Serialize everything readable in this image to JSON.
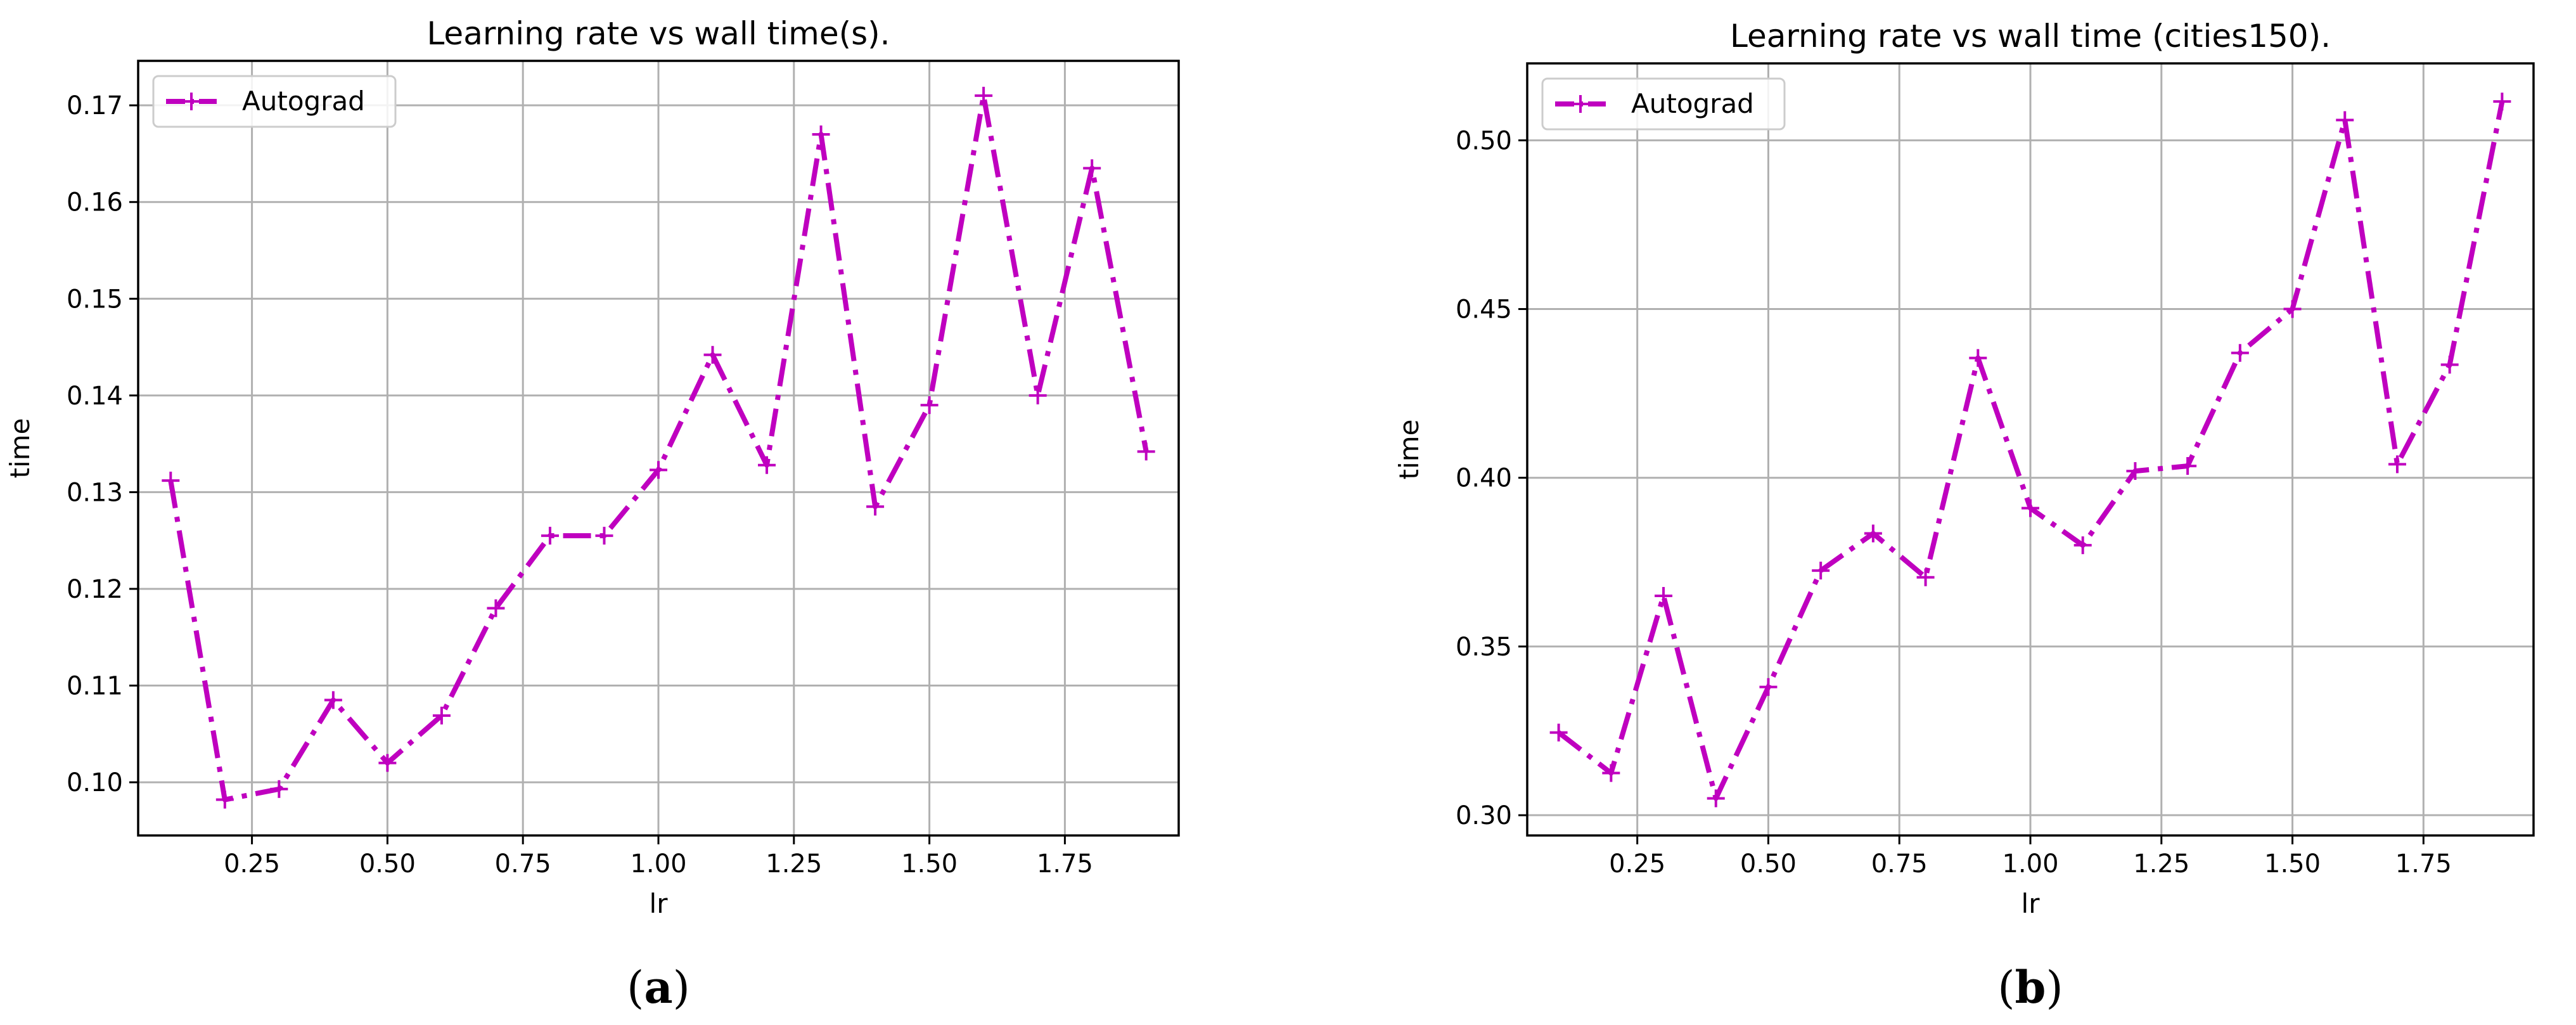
{
  "chart_data": [
    {
      "type": "line",
      "title": "Learning rate vs wall time(s).",
      "xlabel": "lr",
      "ylabel": "time",
      "xlim": [
        0.04,
        1.96
      ],
      "ylim": [
        0.0945,
        0.1746
      ],
      "xticks": [
        0.25,
        0.5,
        0.75,
        1.0,
        1.25,
        1.5,
        1.75
      ],
      "xtick_labels": [
        "0.25",
        "0.50",
        "0.75",
        "1.00",
        "1.25",
        "1.50",
        "1.75"
      ],
      "yticks": [
        0.1,
        0.11,
        0.12,
        0.13,
        0.14,
        0.15,
        0.16,
        0.17
      ],
      "ytick_labels": [
        "0.10",
        "0.11",
        "0.12",
        "0.13",
        "0.14",
        "0.15",
        "0.16",
        "0.17"
      ],
      "grid": true,
      "legend": "top-left",
      "series": [
        {
          "name": "Autograd",
          "color": "#bf00bf",
          "linestyle": "dash-dot",
          "marker": "+",
          "x": [
            0.1,
            0.2,
            0.3,
            0.4,
            0.5,
            0.6,
            0.7,
            0.8,
            0.9,
            1.0,
            1.1,
            1.2,
            1.3,
            1.4,
            1.5,
            1.6,
            1.7,
            1.8,
            1.9
          ],
          "y": [
            0.1312,
            0.0982,
            0.0993,
            0.1085,
            0.102,
            0.1069,
            0.118,
            0.1255,
            0.1255,
            0.1323,
            0.1442,
            0.1328,
            0.167,
            0.1285,
            0.139,
            0.171,
            0.14,
            0.1635,
            0.1342
          ]
        }
      ],
      "panel_label": "a"
    },
    {
      "type": "line",
      "title": "Learning rate vs wall time (cities150).",
      "xlabel": "lr",
      "ylabel": "time",
      "xlim": [
        0.04,
        1.96
      ],
      "ylim": [
        0.294,
        0.5228
      ],
      "xticks": [
        0.25,
        0.5,
        0.75,
        1.0,
        1.25,
        1.5,
        1.75
      ],
      "xtick_labels": [
        "0.25",
        "0.50",
        "0.75",
        "1.00",
        "1.25",
        "1.50",
        "1.75"
      ],
      "yticks": [
        0.3,
        0.35,
        0.4,
        0.45,
        0.5
      ],
      "ytick_labels": [
        "0.30",
        "0.35",
        "0.40",
        "0.45",
        "0.50"
      ],
      "grid": true,
      "legend": "top-left",
      "series": [
        {
          "name": "Autograd",
          "color": "#bf00bf",
          "linestyle": "dash-dot",
          "marker": "+",
          "x": [
            0.1,
            0.2,
            0.3,
            0.4,
            0.5,
            0.6,
            0.7,
            0.8,
            0.9,
            1.0,
            1.1,
            1.2,
            1.3,
            1.4,
            1.5,
            1.6,
            1.7,
            1.8,
            1.9
          ],
          "y": [
            0.3245,
            0.3125,
            0.365,
            0.305,
            0.338,
            0.3725,
            0.3835,
            0.3705,
            0.4355,
            0.391,
            0.38,
            0.402,
            0.4035,
            0.437,
            0.45,
            0.506,
            0.404,
            0.4335,
            0.5115
          ]
        }
      ],
      "panel_label": "b"
    }
  ]
}
